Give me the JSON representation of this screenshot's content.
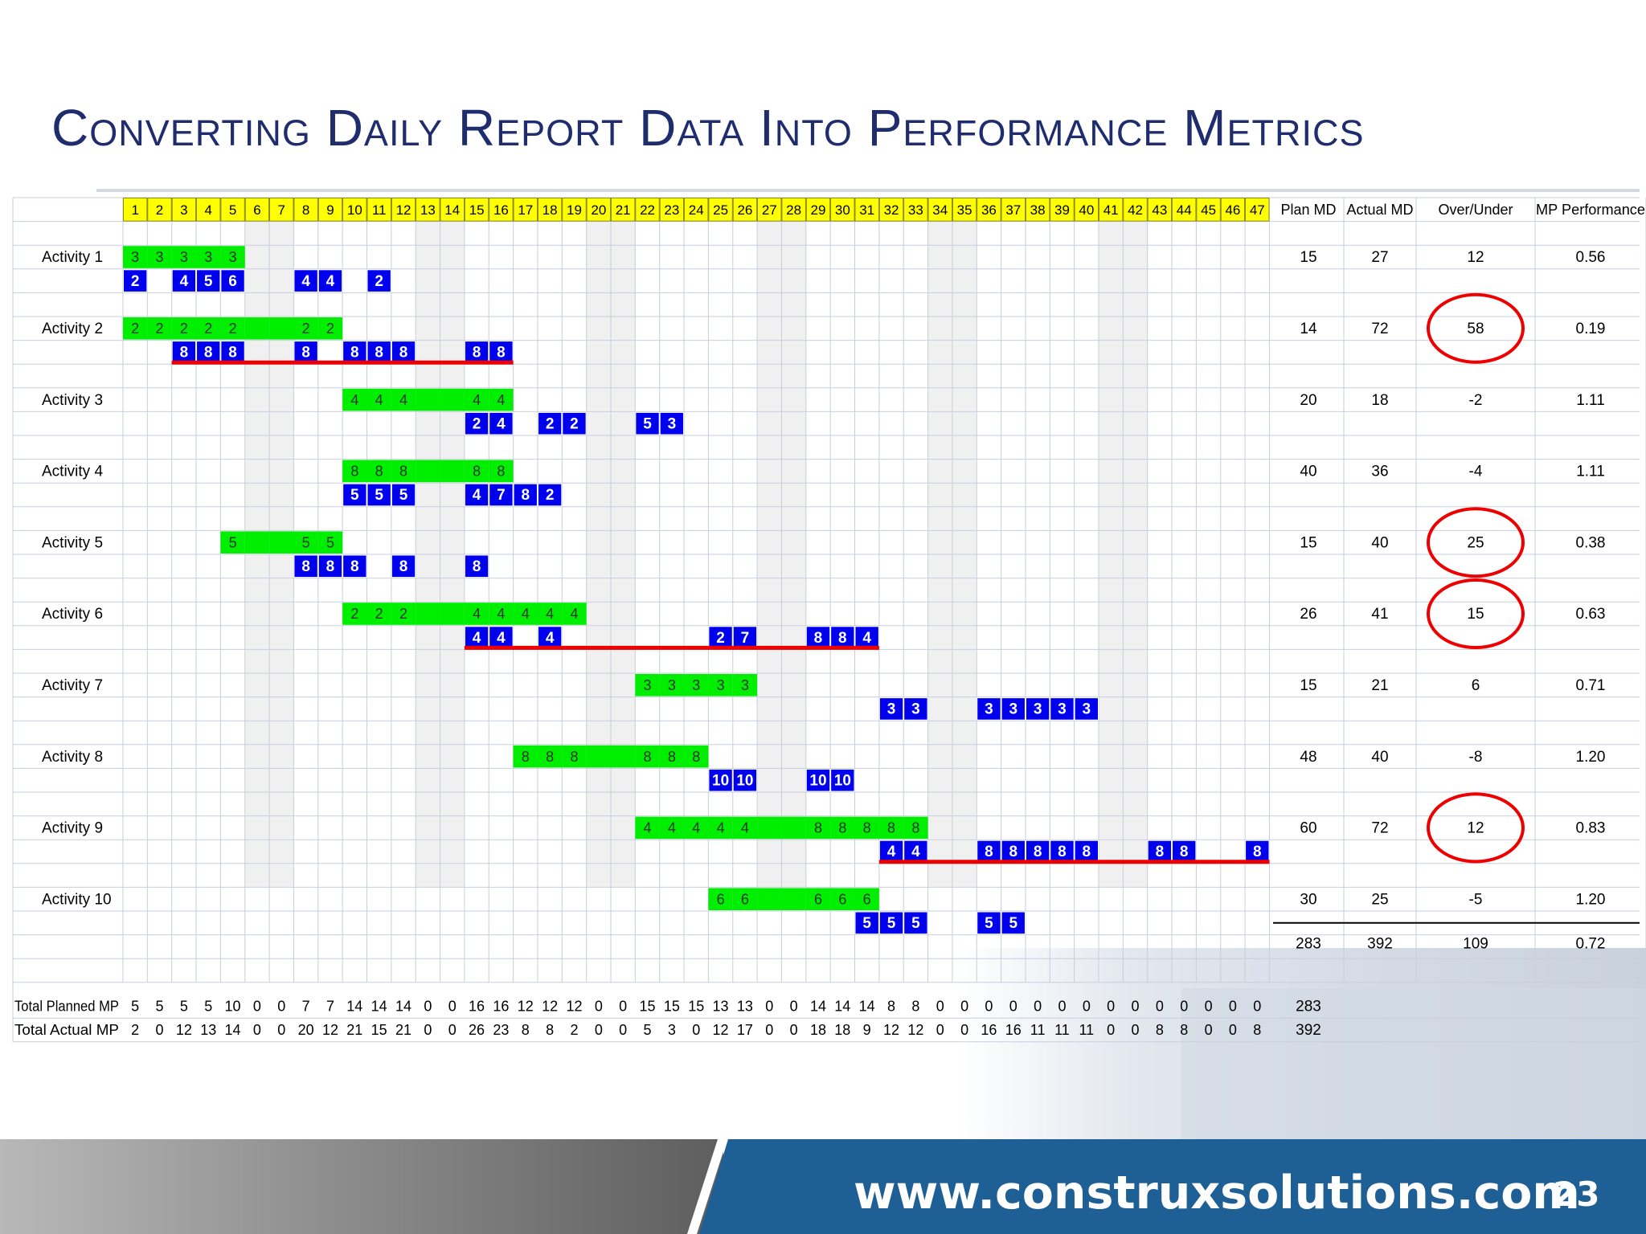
{
  "slide": {
    "title": "Converting Daily Report Data Into Performance Metrics",
    "url": "www.construxsolutions.com",
    "page_number": "23"
  },
  "colors": {
    "title": "#1f2d6e",
    "planned": "#00ee00",
    "actual": "#0000ee",
    "day_header": "#ffff00",
    "weekend": "#f0f0f0",
    "highlight": "#ee0000",
    "footer_blue": "#1e5f95"
  },
  "columns": {
    "plan": "Plan MD",
    "actual": "Actual MD",
    "over": "Over/Under",
    "perf": "MP Performance"
  },
  "days": [
    1,
    2,
    3,
    4,
    5,
    6,
    7,
    8,
    9,
    10,
    11,
    12,
    13,
    14,
    15,
    16,
    17,
    18,
    19,
    20,
    21,
    22,
    23,
    24,
    25,
    26,
    27,
    28,
    29,
    30,
    31,
    32,
    33,
    34,
    35,
    36,
    37,
    38,
    39,
    40,
    41,
    42,
    43,
    44,
    45,
    46,
    47
  ],
  "weekend_days": [
    6,
    7,
    13,
    14,
    20,
    21,
    27,
    28,
    34,
    35,
    41,
    42
  ],
  "activities": [
    {
      "name": "Activity 1",
      "plan_md": "15",
      "actual_md": "27",
      "over_under": "12",
      "performance": "0.56",
      "circled": false,
      "planned": [
        [
          1,
          3
        ],
        [
          2,
          3
        ],
        [
          3,
          3
        ],
        [
          4,
          3
        ],
        [
          5,
          3
        ]
      ],
      "actual": [
        [
          1,
          2
        ],
        [
          3,
          4
        ],
        [
          4,
          5
        ],
        [
          5,
          6
        ],
        [
          8,
          4
        ],
        [
          9,
          4
        ],
        [
          11,
          2
        ]
      ],
      "red_span": null
    },
    {
      "name": "Activity 2",
      "plan_md": "14",
      "actual_md": "72",
      "over_under": "58",
      "performance": "0.19",
      "circled": true,
      "planned": [
        [
          1,
          2
        ],
        [
          2,
          2
        ],
        [
          3,
          2
        ],
        [
          4,
          2
        ],
        [
          5,
          2
        ],
        [
          6,
          ""
        ],
        [
          7,
          ""
        ],
        [
          8,
          2
        ],
        [
          9,
          2
        ]
      ],
      "actual": [
        [
          3,
          8
        ],
        [
          4,
          8
        ],
        [
          5,
          8
        ],
        [
          8,
          8
        ],
        [
          10,
          8
        ],
        [
          11,
          8
        ],
        [
          12,
          8
        ],
        [
          15,
          8
        ],
        [
          16,
          8
        ]
      ],
      "red_span": [
        3,
        16
      ]
    },
    {
      "name": "Activity 3",
      "plan_md": "20",
      "actual_md": "18",
      "over_under": "-2",
      "performance": "1.11",
      "circled": false,
      "planned": [
        [
          10,
          4
        ],
        [
          11,
          4
        ],
        [
          12,
          4
        ],
        [
          13,
          ""
        ],
        [
          14,
          ""
        ],
        [
          15,
          4
        ],
        [
          16,
          4
        ]
      ],
      "actual": [
        [
          15,
          2
        ],
        [
          16,
          4
        ],
        [
          18,
          2
        ],
        [
          19,
          2
        ],
        [
          22,
          5
        ],
        [
          23,
          3
        ]
      ],
      "red_span": null
    },
    {
      "name": "Activity 4",
      "plan_md": "40",
      "actual_md": "36",
      "over_under": "-4",
      "performance": "1.11",
      "circled": false,
      "planned": [
        [
          10,
          8
        ],
        [
          11,
          8
        ],
        [
          12,
          8
        ],
        [
          13,
          ""
        ],
        [
          14,
          ""
        ],
        [
          15,
          8
        ],
        [
          16,
          8
        ]
      ],
      "actual": [
        [
          10,
          5
        ],
        [
          11,
          5
        ],
        [
          12,
          5
        ],
        [
          15,
          4
        ],
        [
          16,
          7
        ],
        [
          17,
          8
        ],
        [
          18,
          2
        ]
      ],
      "red_span": null
    },
    {
      "name": "Activity 5",
      "plan_md": "15",
      "actual_md": "40",
      "over_under": "25",
      "performance": "0.38",
      "circled": true,
      "planned": [
        [
          5,
          5
        ],
        [
          6,
          ""
        ],
        [
          7,
          ""
        ],
        [
          8,
          5
        ],
        [
          9,
          5
        ]
      ],
      "actual": [
        [
          8,
          8
        ],
        [
          9,
          8
        ],
        [
          10,
          8
        ],
        [
          12,
          8
        ],
        [
          15,
          8
        ]
      ],
      "red_span": null
    },
    {
      "name": "Activity 6",
      "plan_md": "26",
      "actual_md": "41",
      "over_under": "15",
      "performance": "0.63",
      "circled": true,
      "planned": [
        [
          10,
          2
        ],
        [
          11,
          2
        ],
        [
          12,
          2
        ],
        [
          13,
          ""
        ],
        [
          14,
          ""
        ],
        [
          15,
          4
        ],
        [
          16,
          4
        ],
        [
          17,
          4
        ],
        [
          18,
          4
        ],
        [
          19,
          4
        ]
      ],
      "actual": [
        [
          15,
          4
        ],
        [
          16,
          4
        ],
        [
          18,
          4
        ],
        [
          25,
          2
        ],
        [
          26,
          7
        ],
        [
          29,
          8
        ],
        [
          30,
          8
        ],
        [
          31,
          4
        ]
      ],
      "red_span": [
        15,
        31
      ]
    },
    {
      "name": "Activity 7",
      "plan_md": "15",
      "actual_md": "21",
      "over_under": "6",
      "performance": "0.71",
      "circled": false,
      "planned": [
        [
          22,
          3
        ],
        [
          23,
          3
        ],
        [
          24,
          3
        ],
        [
          25,
          3
        ],
        [
          26,
          3
        ]
      ],
      "actual": [
        [
          32,
          3
        ],
        [
          33,
          3
        ],
        [
          36,
          3
        ],
        [
          37,
          3
        ],
        [
          38,
          3
        ],
        [
          39,
          3
        ],
        [
          40,
          3
        ]
      ],
      "red_span": null
    },
    {
      "name": "Activity 8",
      "plan_md": "48",
      "actual_md": "40",
      "over_under": "-8",
      "performance": "1.20",
      "circled": false,
      "planned": [
        [
          17,
          8
        ],
        [
          18,
          8
        ],
        [
          19,
          8
        ],
        [
          20,
          ""
        ],
        [
          21,
          ""
        ],
        [
          22,
          8
        ],
        [
          23,
          8
        ],
        [
          24,
          8
        ]
      ],
      "actual": [
        [
          25,
          10
        ],
        [
          26,
          10
        ],
        [
          29,
          10
        ],
        [
          30,
          10
        ]
      ],
      "red_span": null
    },
    {
      "name": "Activity 9",
      "plan_md": "60",
      "actual_md": "72",
      "over_under": "12",
      "performance": "0.83",
      "circled": true,
      "planned": [
        [
          22,
          4
        ],
        [
          23,
          4
        ],
        [
          24,
          4
        ],
        [
          25,
          4
        ],
        [
          26,
          4
        ],
        [
          27,
          ""
        ],
        [
          28,
          ""
        ],
        [
          29,
          8
        ],
        [
          30,
          8
        ],
        [
          31,
          8
        ],
        [
          32,
          8
        ],
        [
          33,
          8
        ]
      ],
      "actual": [
        [
          32,
          4
        ],
        [
          33,
          4
        ],
        [
          36,
          8
        ],
        [
          37,
          8
        ],
        [
          38,
          8
        ],
        [
          39,
          8
        ],
        [
          40,
          8
        ],
        [
          43,
          8
        ],
        [
          44,
          8
        ],
        [
          47,
          8
        ]
      ],
      "red_span": [
        32,
        47
      ]
    },
    {
      "name": "Activity 10",
      "plan_md": "30",
      "actual_md": "25",
      "over_under": "-5",
      "performance": "1.20",
      "circled": false,
      "planned": [
        [
          25,
          6
        ],
        [
          26,
          6
        ],
        [
          27,
          ""
        ],
        [
          28,
          ""
        ],
        [
          29,
          6
        ],
        [
          30,
          6
        ],
        [
          31,
          6
        ]
      ],
      "actual": [
        [
          31,
          5
        ],
        [
          32,
          5
        ],
        [
          33,
          5
        ],
        [
          36,
          5
        ],
        [
          37,
          5
        ]
      ],
      "red_span": null
    }
  ],
  "totals": {
    "plan_md": "283",
    "actual_md": "392",
    "over_under": "109",
    "performance": "0.72"
  },
  "total_planned": {
    "label": "Total Planned MP",
    "values": [
      5,
      5,
      5,
      5,
      10,
      0,
      0,
      7,
      7,
      14,
      14,
      14,
      0,
      0,
      16,
      16,
      12,
      12,
      12,
      0,
      0,
      15,
      15,
      15,
      13,
      13,
      0,
      0,
      14,
      14,
      14,
      8,
      8,
      0,
      0,
      0,
      0,
      0,
      0,
      0,
      0,
      0,
      0,
      0,
      0,
      0,
      0
    ],
    "total": "283"
  },
  "total_actual": {
    "label": "Total Actual MP",
    "values": [
      2,
      0,
      12,
      13,
      14,
      0,
      0,
      20,
      12,
      21,
      15,
      21,
      0,
      0,
      26,
      23,
      8,
      8,
      2,
      0,
      0,
      5,
      3,
      0,
      12,
      17,
      0,
      0,
      18,
      18,
      9,
      12,
      12,
      0,
      0,
      16,
      16,
      11,
      11,
      11,
      0,
      0,
      8,
      8,
      0,
      0,
      8
    ],
    "total": "392"
  }
}
